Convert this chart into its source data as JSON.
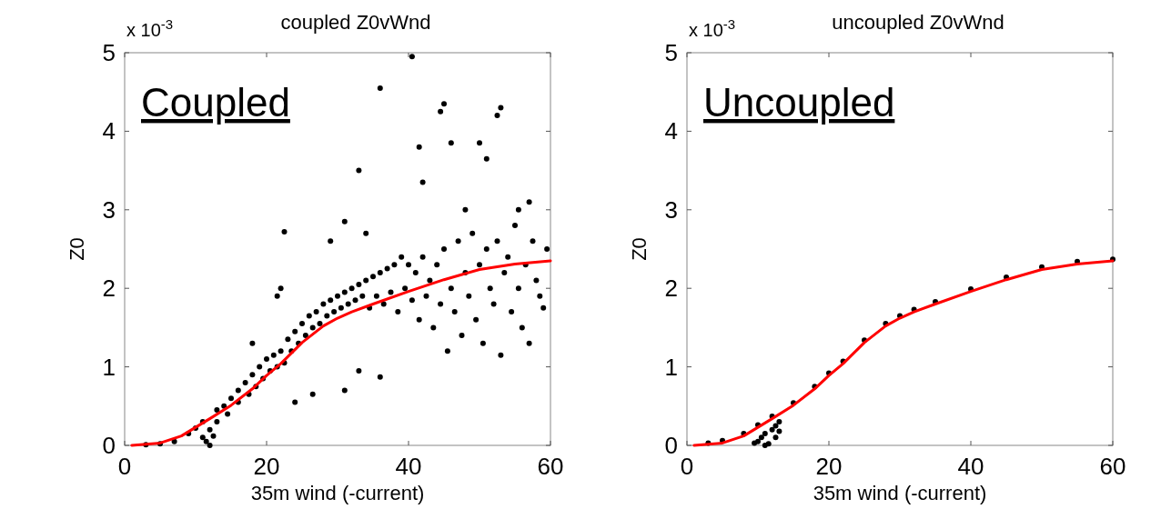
{
  "chart_data": [
    {
      "type": "scatter",
      "title": "coupled Z0vWnd",
      "xlabel": "35m wind (-current)",
      "ylabel": "Z0",
      "annotations": [
        "x 10$^{-3}$",
        "Coupled"
      ],
      "xlim": [
        0,
        60
      ],
      "xticks": [
        0,
        20,
        40,
        60
      ],
      "ylim": [
        0,
        5
      ],
      "yticks": [
        0,
        1,
        2,
        3,
        4,
        5
      ],
      "series": [
        {
          "type": "scatter",
          "color": "#000000",
          "marker": "circle",
          "x": [
            9,
            10,
            11,
            11.5,
            12,
            12,
            12.5,
            13,
            13,
            14,
            14.5,
            15,
            16,
            16,
            17,
            17.5,
            18,
            18.5,
            19,
            19.5,
            20,
            20.5,
            21,
            21.5,
            22,
            22.5,
            23,
            23.5,
            24,
            24.5,
            25,
            25.5,
            26,
            26.5,
            27,
            27.5,
            28,
            28.5,
            29,
            29.5,
            30,
            30.5,
            31,
            31.5,
            32,
            32.5,
            33,
            33.5,
            34,
            34.5,
            35,
            35.5,
            36,
            36.5,
            37,
            37.5,
            38,
            38.5,
            39,
            39.5,
            40,
            40.5,
            41,
            41.5,
            42,
            42.5,
            43,
            43.5,
            44,
            44.5,
            45,
            45.5,
            46,
            46.5,
            47,
            47.5,
            48,
            48.5,
            49,
            49.5,
            50,
            50.5,
            51,
            51.5,
            52,
            52.5,
            53,
            53.5,
            54,
            54.5,
            55,
            55.5,
            56,
            56.5,
            57,
            57.5,
            58,
            58.5,
            59,
            59.5,
            22.5,
            21.5,
            22,
            29,
            31,
            33,
            34,
            36,
            40.5,
            42,
            41.5,
            44.5,
            45,
            46,
            48,
            50,
            51,
            52.5,
            53,
            57,
            55.5,
            31,
            33,
            26.5,
            24,
            36,
            18,
            11,
            7,
            5,
            3
          ],
          "values": [
            0.15,
            0.22,
            0.1,
            0.05,
            0.0,
            0.2,
            0.12,
            0.3,
            0.45,
            0.5,
            0.4,
            0.6,
            0.7,
            0.55,
            0.8,
            0.65,
            0.9,
            0.75,
            1.0,
            0.85,
            1.1,
            0.95,
            1.15,
            1.0,
            1.2,
            1.05,
            1.35,
            1.2,
            1.45,
            1.3,
            1.55,
            1.4,
            1.65,
            1.5,
            1.7,
            1.55,
            1.8,
            1.65,
            1.85,
            1.7,
            1.9,
            1.75,
            1.95,
            1.8,
            2.0,
            1.85,
            2.05,
            1.9,
            2.1,
            1.75,
            2.15,
            1.9,
            2.2,
            1.8,
            2.25,
            1.95,
            2.3,
            1.7,
            2.4,
            2.0,
            2.3,
            1.85,
            2.2,
            1.6,
            2.4,
            1.9,
            2.1,
            1.5,
            2.3,
            1.8,
            2.5,
            1.2,
            2.0,
            1.7,
            2.6,
            1.4,
            2.2,
            1.9,
            2.7,
            1.6,
            2.3,
            1.3,
            2.5,
            2.0,
            1.8,
            2.6,
            1.15,
            2.2,
            2.4,
            1.7,
            2.8,
            2.0,
            1.5,
            2.3,
            1.3,
            2.6,
            2.1,
            1.9,
            1.75,
            2.5,
            2.72,
            1.9,
            2.0,
            2.6,
            2.85,
            3.5,
            2.7,
            4.55,
            4.95,
            3.35,
            3.8,
            4.25,
            4.35,
            3.85,
            3.0,
            3.85,
            3.65,
            4.2,
            4.3,
            3.1,
            3.0,
            0.7,
            0.95,
            0.65,
            0.55,
            0.87,
            1.3,
            0.3,
            0.05,
            0.02,
            0.01
          ]
        },
        {
          "type": "line",
          "color": "#ff0000",
          "x": [
            1,
            5,
            8,
            10,
            12,
            15,
            18,
            20,
            22,
            25,
            28,
            30,
            32,
            35,
            40,
            45,
            50,
            55,
            60
          ],
          "values": [
            0,
            0.03,
            0.12,
            0.23,
            0.34,
            0.51,
            0.72,
            0.89,
            1.04,
            1.31,
            1.52,
            1.62,
            1.7,
            1.8,
            1.96,
            2.11,
            2.24,
            2.31,
            2.35
          ]
        }
      ]
    },
    {
      "type": "scatter",
      "title": "uncoupled Z0vWnd",
      "xlabel": "35m wind (-current)",
      "ylabel": "Z0",
      "annotations": [
        "x 10$^{-3}$",
        "Uncoupled"
      ],
      "xlim": [
        0,
        60
      ],
      "xticks": [
        0,
        20,
        40,
        60
      ],
      "ylim": [
        0,
        5
      ],
      "yticks": [
        0,
        1,
        2,
        3,
        4,
        5
      ],
      "series": [
        {
          "type": "scatter",
          "color": "#000000",
          "marker": "circle",
          "x": [
            3,
            5,
            8,
            10,
            12,
            15,
            18,
            20,
            22,
            25,
            28,
            30,
            32,
            35,
            40,
            45,
            50,
            55,
            60,
            10,
            10.5,
            11,
            11.5,
            12,
            12.5,
            12.5,
            13,
            13,
            11,
            9.5
          ],
          "values": [
            0.03,
            0.06,
            0.15,
            0.26,
            0.37,
            0.54,
            0.75,
            0.92,
            1.07,
            1.34,
            1.55,
            1.65,
            1.73,
            1.83,
            1.99,
            2.14,
            2.27,
            2.34,
            2.37,
            0.05,
            0.1,
            0.15,
            0.02,
            0.2,
            0.25,
            0.1,
            0.3,
            0.18,
            0.0,
            0.03
          ]
        },
        {
          "type": "line",
          "color": "#ff0000",
          "x": [
            1,
            5,
            8,
            10,
            12,
            15,
            18,
            20,
            22,
            25,
            28,
            30,
            32,
            35,
            40,
            45,
            50,
            55,
            60
          ],
          "values": [
            0,
            0.03,
            0.12,
            0.23,
            0.34,
            0.51,
            0.72,
            0.89,
            1.04,
            1.31,
            1.52,
            1.62,
            1.7,
            1.8,
            1.96,
            2.11,
            2.24,
            2.31,
            2.35
          ]
        }
      ]
    }
  ]
}
